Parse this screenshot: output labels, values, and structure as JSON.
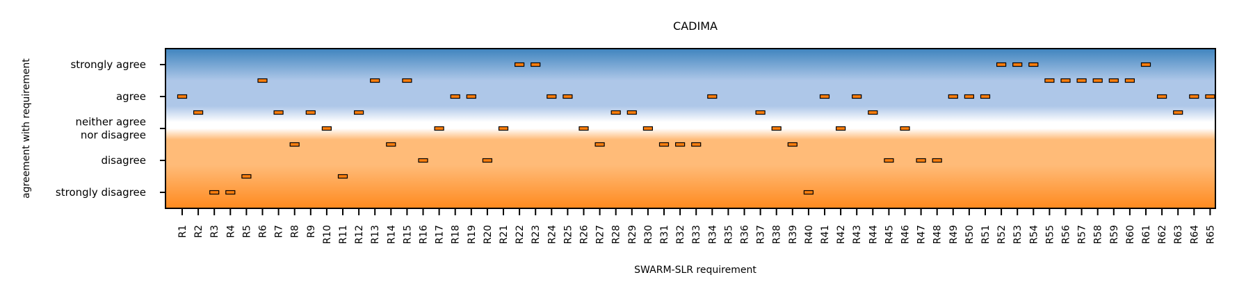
{
  "chart_data": {
    "type": "scatter",
    "title": "CADIMA",
    "xlabel": "SWARM-SLR requirement",
    "ylabel": "agreement with requirement",
    "y_tick_labels": [
      [
        "strongly disagree"
      ],
      [
        "disagree"
      ],
      [
        "neither agree",
        "nor disagree"
      ],
      [
        "agree"
      ],
      [
        "strongly agree"
      ]
    ],
    "ylim": [
      -0.5,
      4.5
    ],
    "grid": false,
    "categories": [
      "R1",
      "R2",
      "R3",
      "R4",
      "R5",
      "R6",
      "R7",
      "R8",
      "R9",
      "R10",
      "R11",
      "R12",
      "R13",
      "R14",
      "R15",
      "R16",
      "R17",
      "R18",
      "R19",
      "R20",
      "R21",
      "R22",
      "R23",
      "R24",
      "R25",
      "R26",
      "R27",
      "R28",
      "R29",
      "R30",
      "R31",
      "R32",
      "R33",
      "R34",
      "R35",
      "R36",
      "R37",
      "R38",
      "R39",
      "R40",
      "R41",
      "R42",
      "R43",
      "R44",
      "R45",
      "R46",
      "R47",
      "R48",
      "R49",
      "R50",
      "R51",
      "R52",
      "R53",
      "R54",
      "R55",
      "R56",
      "R57",
      "R58",
      "R59",
      "R60",
      "R61",
      "R62",
      "R63",
      "R64",
      "R65"
    ],
    "values": [
      3,
      2.5,
      0,
      0,
      0.5,
      3.5,
      2.5,
      1.5,
      2.5,
      2,
      0.5,
      2.5,
      3.5,
      1.5,
      3.5,
      1,
      2,
      3,
      3,
      1,
      2,
      4,
      4,
      3,
      3,
      2,
      1.5,
      2.5,
      2.5,
      2,
      1.5,
      1.5,
      1.5,
      3,
      null,
      null,
      2.5,
      2,
      1.5,
      0,
      3,
      2,
      3,
      2.5,
      1,
      2,
      1,
      1,
      3,
      3,
      3,
      4,
      4,
      4,
      3.5,
      3.5,
      3.5,
      3.5,
      3.5,
      3.5,
      4,
      3,
      2.5,
      3,
      3
    ],
    "colors": {
      "marker": "#ff7f0e",
      "marker_edge": "#000000",
      "agree_dark": "#3f84be",
      "agree_light": "#aec7e8",
      "neutral": "#ffffff",
      "disagree_light": "#ffbb78",
      "disagree_dark": "#ff8a1f"
    }
  }
}
